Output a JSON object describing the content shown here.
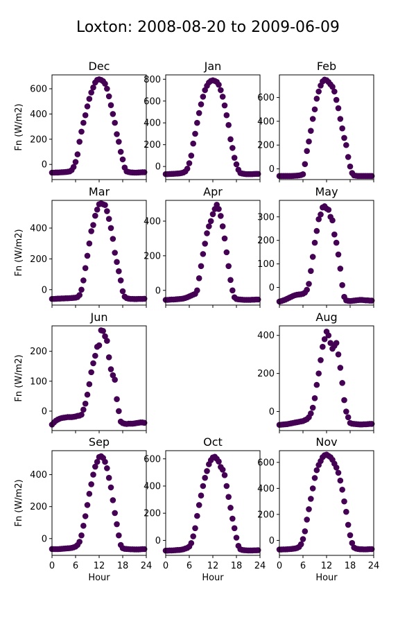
{
  "figure": {
    "title": "Loxton: 2008-08-20 to 2009-06-09"
  },
  "colors": {
    "marker": "#440154",
    "axis": "#000000",
    "background": "#ffffff"
  },
  "chart_data": {
    "type": "scatter",
    "layout": "4x3 grid",
    "xlabel": "Hour",
    "ylabel": "Fn (W/m2)",
    "xlim": [
      0,
      24
    ],
    "xticks": [
      0,
      6,
      12,
      18,
      24
    ],
    "grid": false,
    "panels": [
      {
        "name": "Dec",
        "title": "Dec",
        "row": 0,
        "col": 0,
        "ylim": [
          -120,
          710
        ],
        "yticks": [
          0,
          200,
          400,
          600
        ],
        "x": [
          0,
          0.5,
          1,
          1.5,
          2,
          2.5,
          3,
          3.5,
          4,
          4.5,
          5,
          5.5,
          6,
          6.5,
          7,
          7.5,
          8,
          8.5,
          9,
          9.5,
          10,
          10.5,
          11,
          11.5,
          12,
          12.5,
          13,
          13.5,
          14,
          14.5,
          15,
          15.5,
          16,
          16.5,
          17,
          17.5,
          18,
          18.5,
          19,
          19.5,
          20,
          20.5,
          21,
          21.5,
          22,
          22.5,
          23,
          23.5
        ],
        "y": [
          -65,
          -65,
          -64,
          -64,
          -63,
          -62,
          -61,
          -60,
          -58,
          -55,
          -45,
          -20,
          20,
          80,
          180,
          260,
          330,
          390,
          460,
          520,
          570,
          610,
          650,
          670,
          675,
          670,
          660,
          640,
          600,
          540,
          470,
          400,
          330,
          240,
          180,
          100,
          40,
          -25,
          -55,
          -60,
          -63,
          -64,
          -65,
          -65,
          -64,
          -63,
          -62,
          -62
        ]
      },
      {
        "name": "Jan",
        "title": "Jan",
        "row": 0,
        "col": 1,
        "ylim": [
          -120,
          840
        ],
        "yticks": [
          0,
          200,
          400,
          600,
          800
        ],
        "x": [
          0,
          0.5,
          1,
          1.5,
          2,
          2.5,
          3,
          3.5,
          4,
          4.5,
          5,
          5.5,
          6,
          6.5,
          7,
          7.5,
          8,
          8.5,
          9,
          9.5,
          10,
          10.5,
          11,
          11.5,
          12,
          12.5,
          13,
          13.5,
          14,
          14.5,
          15,
          15.5,
          16,
          16.5,
          17,
          17.5,
          18,
          18.5,
          19,
          19.5,
          20,
          20.5,
          21,
          21.5,
          22,
          22.5,
          23,
          23.5
        ],
        "y": [
          -70,
          -70,
          -69,
          -68,
          -67,
          -66,
          -65,
          -63,
          -60,
          -55,
          -45,
          -20,
          30,
          100,
          210,
          300,
          400,
          490,
          570,
          640,
          700,
          740,
          770,
          785,
          790,
          785,
          775,
          750,
          700,
          640,
          560,
          470,
          380,
          250,
          170,
          80,
          20,
          -30,
          -60,
          -65,
          -68,
          -70,
          -70,
          -70,
          -70,
          -69,
          -68,
          -68
        ]
      },
      {
        "name": "Feb",
        "title": "Feb",
        "row": 0,
        "col": 2,
        "ylim": [
          -90,
          790
        ],
        "yticks": [
          0,
          200,
          400,
          600
        ],
        "x": [
          0,
          0.5,
          1,
          1.5,
          2,
          2.5,
          3,
          3.5,
          4,
          4.5,
          5,
          5.5,
          6,
          6.5,
          7,
          7.5,
          8,
          8.5,
          9,
          9.5,
          10,
          10.5,
          11,
          11.5,
          12,
          12.5,
          13,
          13.5,
          14,
          14.5,
          15,
          15.5,
          16,
          16.5,
          17,
          17.5,
          18,
          18.5,
          19,
          19.5,
          20,
          20.5,
          21,
          21.5,
          22,
          22.5,
          23,
          23.5
        ],
        "y": [
          -60,
          -60,
          -60,
          -60,
          -60,
          -60,
          -60,
          -59,
          -58,
          -57,
          -55,
          -52,
          -45,
          40,
          150,
          230,
          320,
          420,
          500,
          590,
          650,
          700,
          735,
          750,
          745,
          730,
          710,
          690,
          650,
          580,
          510,
          420,
          340,
          260,
          200,
          100,
          20,
          -35,
          -55,
          -58,
          -60,
          -60,
          -60,
          -60,
          -60,
          -60,
          -60,
          -60
        ]
      },
      {
        "name": "Mar",
        "title": "Mar",
        "row": 1,
        "col": 0,
        "ylim": [
          -100,
          580
        ],
        "yticks": [
          0,
          200,
          400
        ],
        "x": [
          0,
          0.5,
          1,
          1.5,
          2,
          2.5,
          3,
          3.5,
          4,
          4.5,
          5,
          5.5,
          6,
          6.5,
          7,
          7.5,
          8,
          8.5,
          9,
          9.5,
          10,
          10.5,
          11,
          11.5,
          12,
          12.5,
          13,
          13.5,
          14,
          14.5,
          15,
          15.5,
          16,
          16.5,
          17,
          17.5,
          18,
          18.5,
          19,
          19.5,
          20,
          20.5,
          21,
          21.5,
          22,
          22.5,
          23,
          23.5
        ],
        "y": [
          -60,
          -60,
          -59,
          -58,
          -58,
          -57,
          -57,
          -56,
          -56,
          -55,
          -54,
          -53,
          -52,
          -48,
          -35,
          0,
          60,
          140,
          220,
          300,
          380,
          420,
          480,
          520,
          555,
          560,
          555,
          550,
          510,
          460,
          400,
          330,
          240,
          180,
          120,
          60,
          -10,
          -45,
          -55,
          -58,
          -60,
          -60,
          -61,
          -61,
          -60,
          -60,
          -60,
          -59
        ]
      },
      {
        "name": "Apr",
        "title": "Apr",
        "row": 1,
        "col": 1,
        "ylim": [
          -85,
          520
        ],
        "yticks": [
          0,
          200,
          400
        ],
        "x": [
          0,
          0.5,
          1,
          1.5,
          2,
          2.5,
          3,
          3.5,
          4,
          4.5,
          5,
          5.5,
          6,
          6.5,
          7,
          7.5,
          8,
          8.5,
          9,
          9.5,
          10,
          10.5,
          11,
          11.5,
          12,
          12.5,
          13,
          13.5,
          14,
          14.5,
          15,
          15.5,
          16,
          16.5,
          17,
          17.5,
          18,
          18.5,
          19,
          19.5,
          20,
          20.5,
          21,
          21.5,
          22,
          22.5,
          23,
          23.5
        ],
        "y": [
          -55,
          -55,
          -54,
          -53,
          -53,
          -52,
          -51,
          -50,
          -49,
          -47,
          -44,
          -40,
          -35,
          -30,
          -25,
          -20,
          0,
          70,
          140,
          210,
          270,
          330,
          370,
          400,
          440,
          470,
          495,
          470,
          430,
          370,
          300,
          220,
          140,
          60,
          0,
          -40,
          -50,
          -52,
          -53,
          -54,
          -55,
          -55,
          -55,
          -55,
          -54,
          -54,
          -53,
          -53
        ]
      },
      {
        "name": "May",
        "title": "May",
        "row": 1,
        "col": 2,
        "ylim": [
          -75,
          370
        ],
        "yticks": [
          0,
          100,
          200,
          300
        ],
        "x": [
          0,
          0.5,
          1,
          1.5,
          2,
          2.5,
          3,
          3.5,
          4,
          4.5,
          5,
          5.5,
          6,
          6.5,
          7,
          7.5,
          8,
          8.5,
          9,
          9.5,
          10,
          10.5,
          11,
          11.5,
          12,
          12.5,
          13,
          13.5,
          14,
          14.5,
          15,
          15.5,
          16,
          16.5,
          17,
          17.5,
          18,
          18.5,
          19,
          19.5,
          20,
          20.5,
          21,
          21.5,
          22,
          22.5,
          23,
          23.5
        ],
        "y": [
          -60,
          -58,
          -55,
          -52,
          -48,
          -44,
          -40,
          -36,
          -33,
          -31,
          -30,
          -29,
          -27,
          -22,
          -10,
          15,
          70,
          130,
          190,
          240,
          290,
          310,
          340,
          345,
          335,
          330,
          300,
          285,
          225,
          190,
          140,
          80,
          10,
          -40,
          -55,
          -57,
          -58,
          -57,
          -56,
          -55,
          -54,
          -53,
          -53,
          -54,
          -55,
          -55,
          -56,
          -56
        ]
      },
      {
        "name": "Jun",
        "title": "Jun",
        "row": 2,
        "col": 0,
        "ylim": [
          -65,
          285
        ],
        "yticks": [
          0,
          100,
          200
        ],
        "x": [
          0,
          0.5,
          1,
          1.5,
          2,
          2.5,
          3,
          3.5,
          4,
          4.5,
          5,
          5.5,
          6,
          6.5,
          7,
          7.5,
          8,
          8.5,
          9,
          9.5,
          10,
          10.5,
          11,
          11.5,
          12,
          12.5,
          13,
          13.5,
          14,
          14.5,
          15,
          15.5,
          16,
          16.5,
          17,
          17.5,
          18,
          18.5,
          19,
          19.5,
          20,
          20.5,
          21,
          21.5,
          22,
          22.5,
          23,
          23.5
        ],
        "y": [
          -45,
          -38,
          -32,
          -28,
          -25,
          -23,
          -22,
          -21,
          -20,
          -20,
          -20,
          -19,
          -18,
          -16,
          -15,
          -12,
          5,
          25,
          55,
          90,
          130,
          160,
          185,
          215,
          220,
          270,
          268,
          250,
          235,
          180,
          140,
          120,
          105,
          40,
          0,
          -35,
          -40,
          -42,
          -43,
          -42,
          -42,
          -42,
          -41,
          -40,
          -39,
          -38,
          -38,
          -39
        ]
      },
      {
        "name": "Aug",
        "title": "Aug",
        "row": 2,
        "col": 2,
        "ylim": [
          -100,
          450
        ],
        "yticks": [
          0,
          200,
          400
        ],
        "x": [
          0,
          0.5,
          1,
          1.5,
          2,
          2.5,
          3,
          3.5,
          4,
          4.5,
          5,
          5.5,
          6,
          6.5,
          7,
          7.5,
          8,
          8.5,
          9,
          9.5,
          10,
          10.5,
          11,
          11.5,
          12,
          12.5,
          13,
          13.5,
          14,
          14.5,
          15,
          15.5,
          16,
          16.5,
          17,
          17.5,
          18,
          18.5,
          19,
          19.5,
          20,
          20.5,
          21,
          21.5,
          22,
          22.5,
          23,
          23.5
        ],
        "y": [
          -70,
          -69,
          -68,
          -67,
          -66,
          -64,
          -62,
          -60,
          -58,
          -56,
          -54,
          -52,
          -50,
          -45,
          -40,
          -30,
          -10,
          20,
          70,
          140,
          200,
          270,
          340,
          380,
          420,
          400,
          360,
          330,
          345,
          360,
          300,
          230,
          150,
          60,
          0,
          -30,
          -60,
          -64,
          -65,
          -66,
          -67,
          -68,
          -68,
          -67,
          -67,
          -66,
          -65,
          -65
        ]
      },
      {
        "name": "Sep",
        "title": "Sep",
        "row": 3,
        "col": 0,
        "ylim": [
          -105,
          550
        ],
        "yticks": [
          0,
          200,
          400
        ],
        "x": [
          0,
          0.5,
          1,
          1.5,
          2,
          2.5,
          3,
          3.5,
          4,
          4.5,
          5,
          5.5,
          6,
          6.5,
          7,
          7.5,
          8,
          8.5,
          9,
          9.5,
          10,
          10.5,
          11,
          11.5,
          12,
          12.5,
          13,
          13.5,
          14,
          14.5,
          15,
          15.5,
          16,
          16.5,
          17,
          17.5,
          18,
          18.5,
          19,
          19.5,
          20,
          20.5,
          21,
          21.5,
          22,
          22.5,
          23,
          23.5
        ],
        "y": [
          -65,
          -66,
          -66,
          -66,
          -65,
          -64,
          -63,
          -62,
          -61,
          -60,
          -58,
          -55,
          -50,
          -40,
          -20,
          20,
          80,
          140,
          210,
          280,
          340,
          400,
          450,
          480,
          510,
          515,
          505,
          480,
          440,
          380,
          320,
          240,
          160,
          90,
          20,
          -40,
          -60,
          -64,
          -65,
          -66,
          -67,
          -67,
          -68,
          -68,
          -68,
          -67,
          -66,
          -66
        ]
      },
      {
        "name": "Oct",
        "title": "Oct",
        "row": 3,
        "col": 1,
        "ylim": [
          -110,
          660
        ],
        "yticks": [
          0,
          200,
          400,
          600
        ],
        "x": [
          0,
          0.5,
          1,
          1.5,
          2,
          2.5,
          3,
          3.5,
          4,
          4.5,
          5,
          5.5,
          6,
          6.5,
          7,
          7.5,
          8,
          8.5,
          9,
          9.5,
          10,
          10.5,
          11,
          11.5,
          12,
          12.5,
          13,
          13.5,
          14,
          14.5,
          15,
          15.5,
          16,
          16.5,
          17,
          17.5,
          18,
          18.5,
          19,
          19.5,
          20,
          20.5,
          21,
          21.5,
          22,
          22.5,
          23,
          23.5
        ],
        "y": [
          -75,
          -75,
          -74,
          -74,
          -73,
          -72,
          -71,
          -70,
          -68,
          -65,
          -60,
          -55,
          -45,
          -20,
          30,
          90,
          180,
          260,
          330,
          400,
          460,
          510,
          560,
          590,
          610,
          615,
          600,
          580,
          540,
          520,
          480,
          400,
          320,
          240,
          160,
          90,
          20,
          -40,
          -65,
          -70,
          -72,
          -73,
          -74,
          -74,
          -74,
          -73,
          -73,
          -72
        ]
      },
      {
        "name": "Nov",
        "title": "Nov",
        "row": 3,
        "col": 2,
        "ylim": [
          -115,
          690
        ],
        "yticks": [
          0,
          200,
          400,
          600
        ],
        "x": [
          0,
          0.5,
          1,
          1.5,
          2,
          2.5,
          3,
          3.5,
          4,
          4.5,
          5,
          5.5,
          6,
          6.5,
          7,
          7.5,
          8,
          8.5,
          9,
          9.5,
          10,
          10.5,
          11,
          11.5,
          12,
          12.5,
          13,
          13.5,
          14,
          14.5,
          15,
          15.5,
          16,
          16.5,
          17,
          17.5,
          18,
          18.5,
          19,
          19.5,
          20,
          20.5,
          21,
          21.5,
          22,
          22.5,
          23,
          23.5
        ],
        "y": [
          -70,
          -70,
          -69,
          -69,
          -68,
          -67,
          -66,
          -64,
          -62,
          -58,
          -50,
          -30,
          10,
          70,
          160,
          240,
          320,
          400,
          480,
          540,
          580,
          610,
          640,
          655,
          660,
          650,
          640,
          620,
          590,
          560,
          520,
          460,
          390,
          300,
          220,
          120,
          40,
          -20,
          -55,
          -63,
          -66,
          -68,
          -68,
          -69,
          -69,
          -68,
          -67,
          -67
        ]
      }
    ]
  }
}
